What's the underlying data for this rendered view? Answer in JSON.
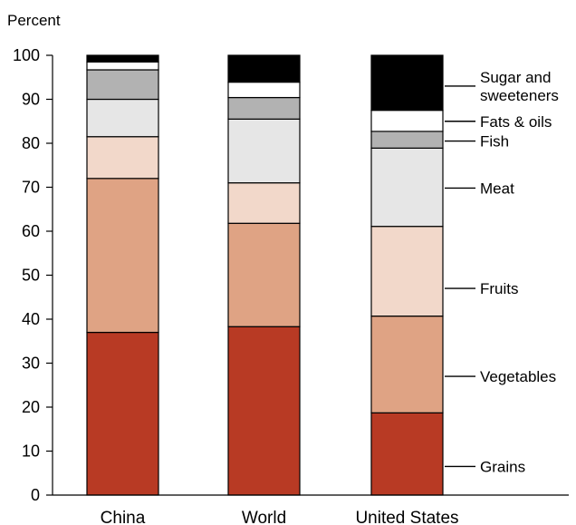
{
  "chart_data": {
    "type": "bar",
    "stacked": true,
    "title": "",
    "xlabel": "",
    "ylabel": "Percent",
    "ylim": [
      0,
      100
    ],
    "yticks": [
      0,
      10,
      20,
      30,
      40,
      50,
      60,
      70,
      80,
      90,
      100
    ],
    "grid": false,
    "legend": "right",
    "categories": [
      "China",
      "World",
      "United States"
    ],
    "series": [
      {
        "name": "Grains",
        "color": "#b83a24",
        "values": [
          37,
          38.3,
          18.7
        ]
      },
      {
        "name": "Vegetables",
        "color": "#dfa384",
        "values": [
          35,
          23.5,
          22.0
        ]
      },
      {
        "name": "Fruits",
        "color": "#f2d8ca",
        "values": [
          9.5,
          9.2,
          20.4
        ]
      },
      {
        "name": "Meat",
        "color": "#e6e6e6",
        "values": [
          8.5,
          14.5,
          17.8
        ]
      },
      {
        "name": "Fish",
        "color": "#b2b2b2",
        "values": [
          6.7,
          4.9,
          3.8
        ]
      },
      {
        "name": "Fats & oils",
        "color": "#ffffff",
        "values": [
          1.8,
          3.5,
          4.8
        ]
      },
      {
        "name": "Sugar and sweeteners",
        "color": "#000000",
        "values": [
          1.5,
          6.1,
          12.5
        ]
      }
    ]
  }
}
